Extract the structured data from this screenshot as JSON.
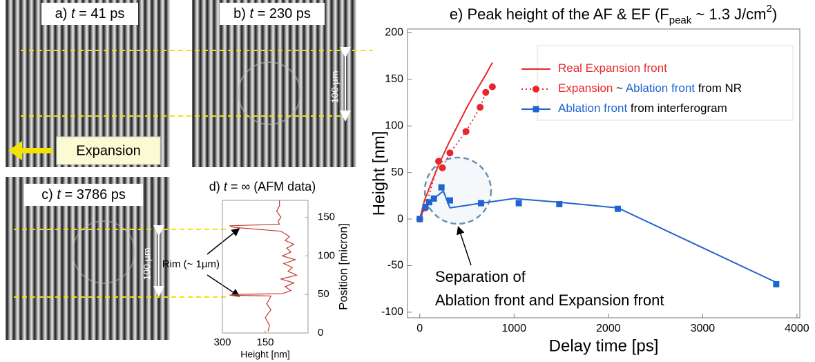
{
  "images": [
    {
      "letter": "a)",
      "var": "t",
      "rest": "= 41 ps"
    },
    {
      "letter": "b)",
      "var": "t",
      "rest": "= 230 ps"
    },
    {
      "letter": "c)",
      "var": "t",
      "rest": "= 3786 ps"
    }
  ],
  "expansion_label": "Expansion",
  "scale_labels": [
    "100 µm",
    "100 µm"
  ],
  "chart_data": [
    {
      "type": "line",
      "title": [
        "d)",
        "t",
        "= ∞ (AFM data)"
      ],
      "xlabel": "Height [nm]",
      "ylabel": "Position [micron]",
      "annotation": "Rim (~ 1µm)",
      "xlim": [
        300,
        0
      ],
      "xticks": [
        300,
        150
      ],
      "ylim": [
        0,
        172
      ],
      "yticks": [
        0,
        50,
        100,
        150
      ],
      "series": [
        {
          "color": "#c0392b",
          "x": [
            140,
            135,
            150,
            130,
            145,
            135,
            130,
            275,
            260,
            90,
            60,
            80,
            50,
            95,
            40,
            70,
            55,
            85,
            45,
            90,
            60,
            75,
            50,
            80,
            65,
            95,
            260,
            275,
            100,
            105,
            95,
            110,
            100,
            100
          ],
          "values": [
            2,
            10,
            20,
            30,
            38,
            44,
            48,
            49,
            50,
            51,
            55,
            60,
            65,
            70,
            75,
            80,
            85,
            90,
            95,
            100,
            105,
            110,
            115,
            120,
            125,
            132,
            137,
            139,
            141,
            145,
            150,
            158,
            165,
            172
          ]
        }
      ]
    },
    {
      "type": "line",
      "title": [
        "e) Peak height of the AF & EF (F",
        "peak",
        " ~ 1.3 J/cm",
        "2",
        ")"
      ],
      "xlabel": "Delay time [ps]",
      "ylabel": "Height [nm]",
      "annotation": [
        "Separation of",
        "Ablation front and Expansion front"
      ],
      "xlim": [
        -130,
        4030
      ],
      "xticks": [
        0,
        1000,
        2000,
        3000,
        4000
      ],
      "ylim": [
        -106,
        204
      ],
      "yticks": [
        -100,
        -50,
        0,
        50,
        100,
        150,
        200
      ],
      "series": [
        {
          "name": [
            "Real Expansion front"
          ],
          "name_colors": [
            "#e8262b"
          ],
          "color": "#e8262b",
          "style": "solid",
          "marker": "none",
          "x": [
            0,
            50,
            100,
            200,
            300,
            400,
            500,
            600,
            700,
            770
          ],
          "values": [
            0,
            20,
            33,
            58,
            80,
            100,
            120,
            138,
            155,
            168
          ]
        },
        {
          "name": [
            "Expansion",
            " ~ ",
            "Ablation front",
            " from NR"
          ],
          "name_colors": [
            "#e8262b",
            "#000000",
            "#1f64d0",
            "#000000"
          ],
          "color": "#e8262b",
          "style": "dotted",
          "marker": "circle",
          "x": [
            0,
            60,
            200,
            240,
            320,
            490,
            640,
            700,
            770
          ],
          "values": [
            0,
            12,
            62,
            55,
            71,
            94,
            120,
            136,
            142
          ]
        },
        {
          "name": [
            "Ablation front",
            " from interferogram"
          ],
          "name_colors": [
            "#1f64d0",
            "#000000"
          ],
          "color": "#1f64d0",
          "style": "solid",
          "marker": "square",
          "x": [
            0,
            60,
            100,
            150,
            230,
            320,
            650,
            1050,
            1480,
            2100,
            3780
          ],
          "values": [
            0,
            13,
            18,
            22,
            34,
            20,
            17,
            17,
            16,
            11,
            -70
          ],
          "fit_x": [
            0,
            60,
            150,
            250,
            320,
            650,
            1000,
            1480,
            2100,
            3780
          ],
          "fit_values": [
            0,
            15,
            22,
            30,
            12,
            17,
            22,
            18,
            12,
            -68
          ]
        }
      ]
    }
  ]
}
